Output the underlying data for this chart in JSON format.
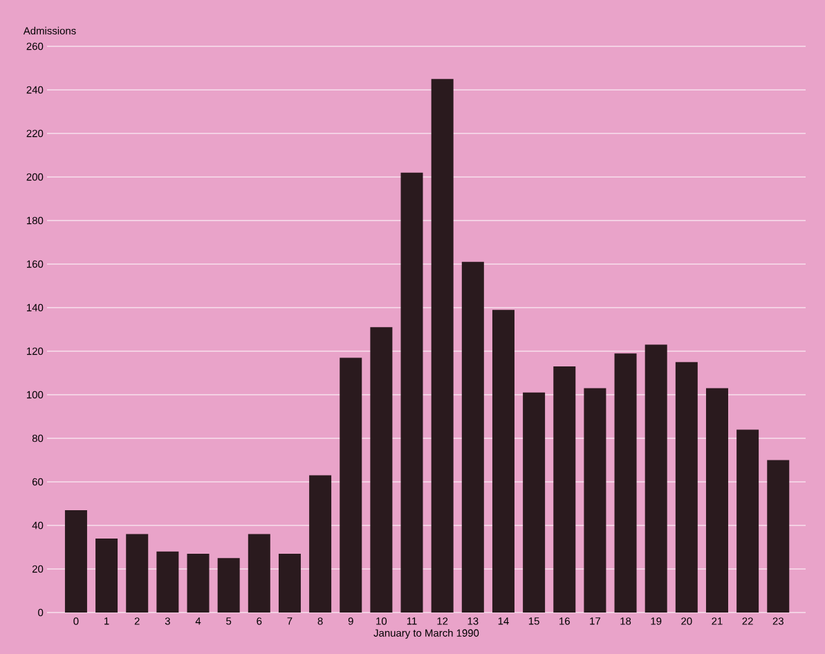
{
  "chart_data": {
    "type": "bar",
    "xlabel": "January to March 1990",
    "ylabel": "Admissions",
    "categories": [
      "0",
      "1",
      "2",
      "3",
      "4",
      "5",
      "6",
      "7",
      "8",
      "9",
      "10",
      "11",
      "12",
      "13",
      "14",
      "15",
      "16",
      "17",
      "18",
      "19",
      "20",
      "21",
      "22",
      "23"
    ],
    "values": [
      47,
      34,
      36,
      28,
      27,
      25,
      36,
      27,
      63,
      117,
      131,
      202,
      245,
      161,
      139,
      101,
      113,
      103,
      119,
      123,
      115,
      103,
      84,
      70
    ],
    "color": "#2a1a1e",
    "ylim": [
      0,
      260
    ],
    "yticks": [
      0,
      20,
      40,
      60,
      80,
      100,
      120,
      140,
      160,
      180,
      200,
      220,
      240,
      260
    ],
    "grid": "y"
  }
}
